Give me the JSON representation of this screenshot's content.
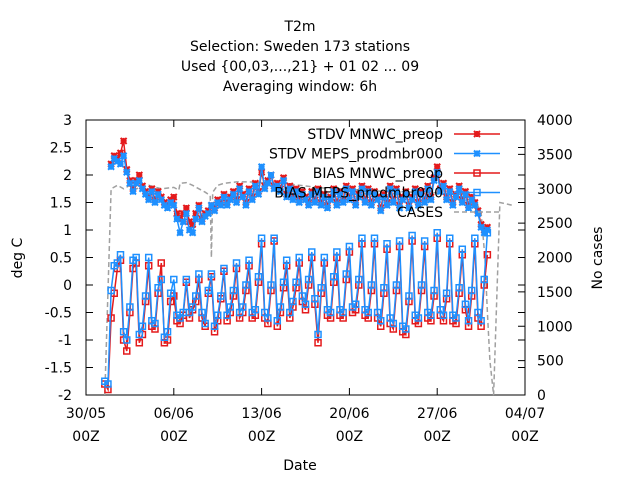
{
  "chart_data": {
    "type": "line",
    "title_lines": [
      "T2m",
      "Selection: Sweden    173 stations",
      "Used {00,03,...,21} + 01 02 ... 09",
      "Averaging window:  6h"
    ],
    "xlabel": "Date",
    "ylabel": "deg C",
    "y2label": "No cases",
    "ylim": [
      -2,
      3
    ],
    "y2lim": [
      0,
      4000
    ],
    "xlim": [
      0,
      35
    ],
    "yticks": [
      "-2",
      "-1.5",
      "-1",
      "-0.5",
      "0",
      "0.5",
      "1",
      "1.5",
      "2",
      "2.5",
      "3"
    ],
    "y2ticks": [
      "0",
      "500",
      "1000",
      "1500",
      "2000",
      "2500",
      "3000",
      "3500",
      "4000"
    ],
    "xticks": [
      {
        "x": 0,
        "date": "30/05",
        "hour": "00Z"
      },
      {
        "x": 7,
        "date": "06/06",
        "hour": "00Z"
      },
      {
        "x": 14,
        "date": "13/06",
        "hour": "00Z"
      },
      {
        "x": 21,
        "date": "20/06",
        "hour": "00Z"
      },
      {
        "x": 28,
        "date": "27/06",
        "hour": "00Z"
      },
      {
        "x": 35,
        "date": "04/07",
        "hour": "00Z"
      }
    ],
    "legend_position": "top-right",
    "series": [
      {
        "name": "STDV MNWC_preop",
        "color": "#e41a1c",
        "marker": "x",
        "axis": "y1",
        "x": [
          2.0,
          2.25,
          2.5,
          2.75,
          3.0,
          3.25,
          3.5,
          3.75,
          4.0,
          4.25,
          4.5,
          4.75,
          5.0,
          5.25,
          5.5,
          5.75,
          6.0,
          6.25,
          6.5,
          6.75,
          7.0,
          7.25,
          7.5,
          7.75,
          8.0,
          8.25,
          8.5,
          8.75,
          9.0,
          9.25,
          9.5,
          9.75,
          10.0,
          10.25,
          10.5,
          10.75,
          11.0,
          11.25,
          11.5,
          11.75,
          12.0,
          12.25,
          12.5,
          12.75,
          13.0,
          13.25,
          13.5,
          13.75,
          14.0,
          14.25,
          14.5,
          14.75,
          15.0,
          15.25,
          15.5,
          15.75,
          16.0,
          16.25,
          16.5,
          16.75,
          17.0,
          17.25,
          17.5,
          17.75,
          18.0,
          18.25,
          18.5,
          18.75,
          19.0,
          19.25,
          19.5,
          19.75,
          20.0,
          20.25,
          20.5,
          20.75,
          21.0,
          21.25,
          21.5,
          21.75,
          22.0,
          22.25,
          22.5,
          22.75,
          23.0,
          23.25,
          23.5,
          23.75,
          24.0,
          24.25,
          24.5,
          24.75,
          25.0,
          25.25,
          25.5,
          25.75,
          26.0,
          26.25,
          26.5,
          26.75,
          27.0,
          27.25,
          27.5,
          27.75,
          28.0,
          28.25,
          28.5,
          28.75,
          29.0,
          29.25,
          29.5,
          29.75,
          30.0,
          30.25,
          30.5,
          30.75,
          31.0,
          31.25,
          31.5,
          31.75,
          32.0
        ],
        "y": [
          2.2,
          2.35,
          2.3,
          2.4,
          2.62,
          2.1,
          1.9,
          1.75,
          1.9,
          2.0,
          1.8,
          1.7,
          1.6,
          1.75,
          1.55,
          1.7,
          1.6,
          1.5,
          1.45,
          1.55,
          1.6,
          1.3,
          1.2,
          1.3,
          1.4,
          1.15,
          1.1,
          1.3,
          1.45,
          1.2,
          1.3,
          1.35,
          1.45,
          1.4,
          1.55,
          1.5,
          1.65,
          1.5,
          1.6,
          1.7,
          1.55,
          1.8,
          1.65,
          1.5,
          1.75,
          1.6,
          1.85,
          1.7,
          2.05,
          1.8,
          1.9,
          2.0,
          1.8,
          1.85,
          1.75,
          1.95,
          1.65,
          1.8,
          1.6,
          1.75,
          1.55,
          1.7,
          1.6,
          1.5,
          1.7,
          1.55,
          1.75,
          1.5,
          1.65,
          1.45,
          1.6,
          1.75,
          1.5,
          1.7,
          1.55,
          1.8,
          1.6,
          1.75,
          1.5,
          1.65,
          1.8,
          1.55,
          1.75,
          1.5,
          1.7,
          1.6,
          1.4,
          1.65,
          1.5,
          1.8,
          1.55,
          1.75,
          1.45,
          1.6,
          1.7,
          1.45,
          1.6,
          1.75,
          1.5,
          1.7,
          1.55,
          1.8,
          1.6,
          1.95,
          2.15,
          1.75,
          1.85,
          1.6,
          1.75,
          1.5,
          1.65,
          1.8,
          1.55,
          1.7,
          1.45,
          1.6,
          1.5,
          1.35,
          1.1,
          1.0,
          1.05
        ]
      },
      {
        "name": "STDV MEPS_prodmbr000",
        "color": "#1e90ff",
        "marker": "x",
        "axis": "y1",
        "x": [
          2.0,
          2.25,
          2.5,
          2.75,
          3.0,
          3.25,
          3.5,
          3.75,
          4.0,
          4.25,
          4.5,
          4.75,
          5.0,
          5.25,
          5.5,
          5.75,
          6.0,
          6.25,
          6.5,
          6.75,
          7.0,
          7.25,
          7.5,
          7.75,
          8.0,
          8.25,
          8.5,
          8.75,
          9.0,
          9.25,
          9.5,
          9.75,
          10.0,
          10.25,
          10.5,
          10.75,
          11.0,
          11.25,
          11.5,
          11.75,
          12.0,
          12.25,
          12.5,
          12.75,
          13.0,
          13.25,
          13.5,
          13.75,
          14.0,
          14.25,
          14.5,
          14.75,
          15.0,
          15.25,
          15.5,
          15.75,
          16.0,
          16.25,
          16.5,
          16.75,
          17.0,
          17.25,
          17.5,
          17.75,
          18.0,
          18.25,
          18.5,
          18.75,
          19.0,
          19.25,
          19.5,
          19.75,
          20.0,
          20.25,
          20.5,
          20.75,
          21.0,
          21.25,
          21.5,
          21.75,
          22.0,
          22.25,
          22.5,
          22.75,
          23.0,
          23.25,
          23.5,
          23.75,
          24.0,
          24.25,
          24.5,
          24.75,
          25.0,
          25.25,
          25.5,
          25.75,
          26.0,
          26.25,
          26.5,
          26.75,
          27.0,
          27.25,
          27.5,
          27.75,
          28.0,
          28.25,
          28.5,
          28.75,
          29.0,
          29.25,
          29.5,
          29.75,
          30.0,
          30.25,
          30.5,
          30.75,
          31.0,
          31.25,
          31.5,
          31.75,
          32.0
        ],
        "y": [
          2.15,
          2.3,
          2.25,
          2.2,
          2.35,
          2.05,
          1.85,
          1.7,
          1.85,
          1.9,
          1.75,
          1.65,
          1.55,
          1.7,
          1.5,
          1.65,
          1.55,
          1.45,
          1.4,
          1.5,
          1.45,
          1.2,
          0.95,
          1.15,
          1.3,
          1.0,
          0.95,
          1.2,
          1.4,
          1.15,
          1.25,
          1.3,
          1.45,
          1.35,
          1.5,
          1.45,
          1.6,
          1.45,
          1.55,
          1.65,
          1.5,
          1.75,
          1.6,
          1.45,
          1.7,
          1.55,
          1.8,
          1.65,
          2.15,
          1.75,
          1.85,
          2.0,
          1.75,
          1.8,
          1.7,
          1.9,
          1.6,
          1.75,
          1.55,
          1.7,
          1.5,
          1.65,
          1.55,
          1.45,
          1.65,
          1.5,
          1.7,
          1.45,
          1.6,
          1.4,
          1.55,
          1.7,
          1.45,
          1.65,
          1.5,
          1.75,
          1.55,
          1.7,
          1.45,
          1.6,
          1.75,
          1.5,
          1.7,
          1.45,
          1.65,
          1.55,
          1.35,
          1.6,
          1.45,
          1.75,
          1.5,
          1.7,
          1.4,
          1.55,
          1.65,
          1.4,
          1.55,
          1.7,
          1.45,
          1.65,
          1.5,
          1.75,
          1.55,
          1.9,
          2.05,
          1.7,
          1.8,
          1.55,
          1.7,
          1.45,
          1.6,
          1.75,
          1.5,
          1.65,
          1.4,
          1.55,
          1.45,
          1.3,
          1.05,
          0.95,
          1.0
        ]
      },
      {
        "name": "BIAS MNWC_preop",
        "color": "#e41a1c",
        "marker": "square",
        "axis": "y1",
        "x": [
          1.5,
          1.75,
          2.0,
          2.25,
          2.5,
          2.75,
          3.0,
          3.25,
          3.5,
          3.75,
          4.0,
          4.25,
          4.5,
          4.75,
          5.0,
          5.25,
          5.5,
          5.75,
          6.0,
          6.25,
          6.5,
          6.75,
          7.0,
          7.25,
          7.5,
          7.75,
          8.0,
          8.25,
          8.5,
          8.75,
          9.0,
          9.25,
          9.5,
          9.75,
          10.0,
          10.25,
          10.5,
          10.75,
          11.0,
          11.25,
          11.5,
          11.75,
          12.0,
          12.25,
          12.5,
          12.75,
          13.0,
          13.25,
          13.5,
          13.75,
          14.0,
          14.25,
          14.5,
          14.75,
          15.0,
          15.25,
          15.5,
          15.75,
          16.0,
          16.25,
          16.5,
          16.75,
          17.0,
          17.25,
          17.5,
          17.75,
          18.0,
          18.25,
          18.5,
          18.75,
          19.0,
          19.25,
          19.5,
          19.75,
          20.0,
          20.25,
          20.5,
          20.75,
          21.0,
          21.25,
          21.5,
          21.75,
          22.0,
          22.25,
          22.5,
          22.75,
          23.0,
          23.25,
          23.5,
          23.75,
          24.0,
          24.25,
          24.5,
          24.75,
          25.0,
          25.25,
          25.5,
          25.75,
          26.0,
          26.25,
          26.5,
          26.75,
          27.0,
          27.25,
          27.5,
          27.75,
          28.0,
          28.25,
          28.5,
          28.75,
          29.0,
          29.25,
          29.5,
          29.75,
          30.0,
          30.25,
          30.5,
          30.75,
          31.0,
          31.25,
          31.5,
          31.75,
          32.0
        ],
        "y": [
          -1.8,
          -1.9,
          -0.6,
          -0.15,
          0.3,
          0.45,
          -1.0,
          -1.2,
          -0.5,
          0.3,
          0.4,
          -1.05,
          -0.9,
          -0.3,
          0.35,
          -0.75,
          -0.8,
          -0.15,
          0.4,
          -1.05,
          -1.0,
          -0.3,
          -0.2,
          -0.65,
          -0.7,
          -0.55,
          0.05,
          -0.6,
          -0.45,
          -0.3,
          0.1,
          -0.6,
          -0.75,
          -0.15,
          0.15,
          -0.85,
          -0.65,
          -0.25,
          0.25,
          -0.65,
          -0.5,
          -0.2,
          0.3,
          -0.6,
          -0.5,
          -0.1,
          0.35,
          -0.6,
          -0.55,
          0.05,
          0.75,
          -0.6,
          -0.7,
          -0.1,
          0.8,
          -0.75,
          -0.5,
          -0.05,
          0.35,
          -0.6,
          -0.4,
          -0.05,
          0.4,
          -0.3,
          -0.45,
          0.0,
          0.5,
          -0.35,
          -1.05,
          -0.15,
          0.4,
          -0.55,
          -0.6,
          0.05,
          0.5,
          -0.55,
          -0.6,
          0.1,
          0.6,
          -0.5,
          -0.45,
          0.0,
          0.75,
          -0.55,
          -0.6,
          -0.1,
          0.75,
          -0.6,
          -0.75,
          -0.15,
          0.65,
          -0.7,
          -0.8,
          -0.1,
          0.7,
          -0.85,
          -0.9,
          -0.3,
          0.8,
          -0.65,
          -0.7,
          -0.1,
          0.7,
          -0.6,
          -0.65,
          -0.2,
          0.85,
          -0.55,
          -0.65,
          -0.25,
          0.75,
          -0.65,
          -0.7,
          -0.15,
          0.55,
          -0.45,
          -0.75,
          -0.2,
          0.75,
          -0.6,
          -0.75,
          0.0,
          0.55
        ]
      },
      {
        "name": "BIAS MEPS_prodmbr000",
        "color": "#1e90ff",
        "marker": "square",
        "axis": "y1",
        "x": [
          1.5,
          1.75,
          2.0,
          2.25,
          2.5,
          2.75,
          3.0,
          3.25,
          3.5,
          3.75,
          4.0,
          4.25,
          4.5,
          4.75,
          5.0,
          5.25,
          5.5,
          5.75,
          6.0,
          6.25,
          6.5,
          6.75,
          7.0,
          7.25,
          7.5,
          7.75,
          8.0,
          8.25,
          8.5,
          8.75,
          9.0,
          9.25,
          9.5,
          9.75,
          10.0,
          10.25,
          10.5,
          10.75,
          11.0,
          11.25,
          11.5,
          11.75,
          12.0,
          12.25,
          12.5,
          12.75,
          13.0,
          13.25,
          13.5,
          13.75,
          14.0,
          14.25,
          14.5,
          14.75,
          15.0,
          15.25,
          15.5,
          15.75,
          16.0,
          16.25,
          16.5,
          16.75,
          17.0,
          17.25,
          17.5,
          17.75,
          18.0,
          18.25,
          18.5,
          18.75,
          19.0,
          19.25,
          19.5,
          19.75,
          20.0,
          20.25,
          20.5,
          20.75,
          21.0,
          21.25,
          21.5,
          21.75,
          22.0,
          22.25,
          22.5,
          22.75,
          23.0,
          23.25,
          23.5,
          23.75,
          24.0,
          24.25,
          24.5,
          24.75,
          25.0,
          25.25,
          25.5,
          25.75,
          26.0,
          26.25,
          26.5,
          26.75,
          27.0,
          27.25,
          27.5,
          27.75,
          28.0,
          28.25,
          28.5,
          28.75,
          29.0,
          29.25,
          29.5,
          29.75,
          30.0,
          30.25,
          30.5,
          30.75,
          31.0,
          31.25,
          31.5,
          31.75,
          32.0
        ],
        "y": [
          -1.75,
          -1.8,
          -0.1,
          0.35,
          0.4,
          0.55,
          -0.85,
          -1.0,
          -0.4,
          0.45,
          0.5,
          -0.9,
          -0.75,
          -0.2,
          0.5,
          -0.65,
          -0.7,
          -0.05,
          0.1,
          -0.95,
          -0.85,
          -0.15,
          0.1,
          -0.55,
          -0.6,
          -0.5,
          0.1,
          -0.5,
          -0.4,
          -0.2,
          0.2,
          -0.5,
          -0.7,
          -0.1,
          0.2,
          -0.75,
          -0.55,
          -0.2,
          0.3,
          -0.55,
          -0.4,
          -0.1,
          0.4,
          -0.5,
          -0.4,
          0.0,
          0.45,
          -0.5,
          -0.45,
          0.15,
          0.85,
          -0.5,
          -0.6,
          0.0,
          0.85,
          -0.65,
          -0.4,
          0.05,
          0.45,
          -0.5,
          -0.3,
          0.05,
          0.5,
          -0.2,
          -0.35,
          0.1,
          0.6,
          -0.25,
          -0.9,
          -0.05,
          0.5,
          -0.45,
          -0.5,
          0.15,
          0.6,
          -0.45,
          -0.5,
          0.2,
          0.7,
          -0.4,
          -0.35,
          0.1,
          0.85,
          -0.45,
          -0.5,
          0.0,
          0.85,
          -0.5,
          -0.65,
          -0.05,
          0.75,
          -0.6,
          -0.7,
          0.0,
          0.8,
          -0.75,
          -0.8,
          -0.2,
          0.9,
          -0.55,
          -0.6,
          0.0,
          0.8,
          -0.5,
          -0.55,
          -0.1,
          0.95,
          -0.45,
          -0.55,
          -0.15,
          0.85,
          -0.55,
          -0.6,
          -0.05,
          0.65,
          -0.35,
          -0.65,
          -0.1,
          0.85,
          -0.5,
          -0.65,
          0.1,
          0.95
        ]
      },
      {
        "name": "CASES",
        "color": "#a0a0a0",
        "marker": "none",
        "dashed": true,
        "axis": "y2",
        "x": [
          1.5,
          2.0,
          2.5,
          3.0,
          3.5,
          4.0,
          5.0,
          6.0,
          7.0,
          7.4,
          7.5,
          8.0,
          8.5,
          9.0,
          9.5,
          9.9,
          10.0,
          10.1,
          10.5,
          11.0,
          12.0,
          13.0,
          14.0,
          15.0,
          16.0,
          17.0,
          18.0,
          19.0,
          20.0,
          21.0,
          22.0,
          23.0,
          24.0,
          25.0,
          26.0,
          27.0,
          28.0,
          29.0,
          30.0,
          30.5,
          31.0,
          31.5,
          31.8,
          32.0,
          32.2,
          32.5,
          33.0,
          33.5,
          34.0
        ],
        "y": [
          0,
          3000,
          3050,
          3000,
          3050,
          3000,
          3050,
          3000,
          3020,
          2980,
          3080,
          3090,
          3050,
          3000,
          2950,
          2900,
          2000,
          2950,
          3050,
          3080,
          3100,
          3100,
          3090,
          3080,
          3070,
          3050,
          3030,
          3010,
          3000,
          2990,
          2980,
          2970,
          2960,
          2960,
          2950,
          2950,
          2940,
          2930,
          2920,
          2900,
          2850,
          2650,
          2000,
          1200,
          500,
          0,
          2800,
          2780,
          2760
        ]
      }
    ]
  }
}
